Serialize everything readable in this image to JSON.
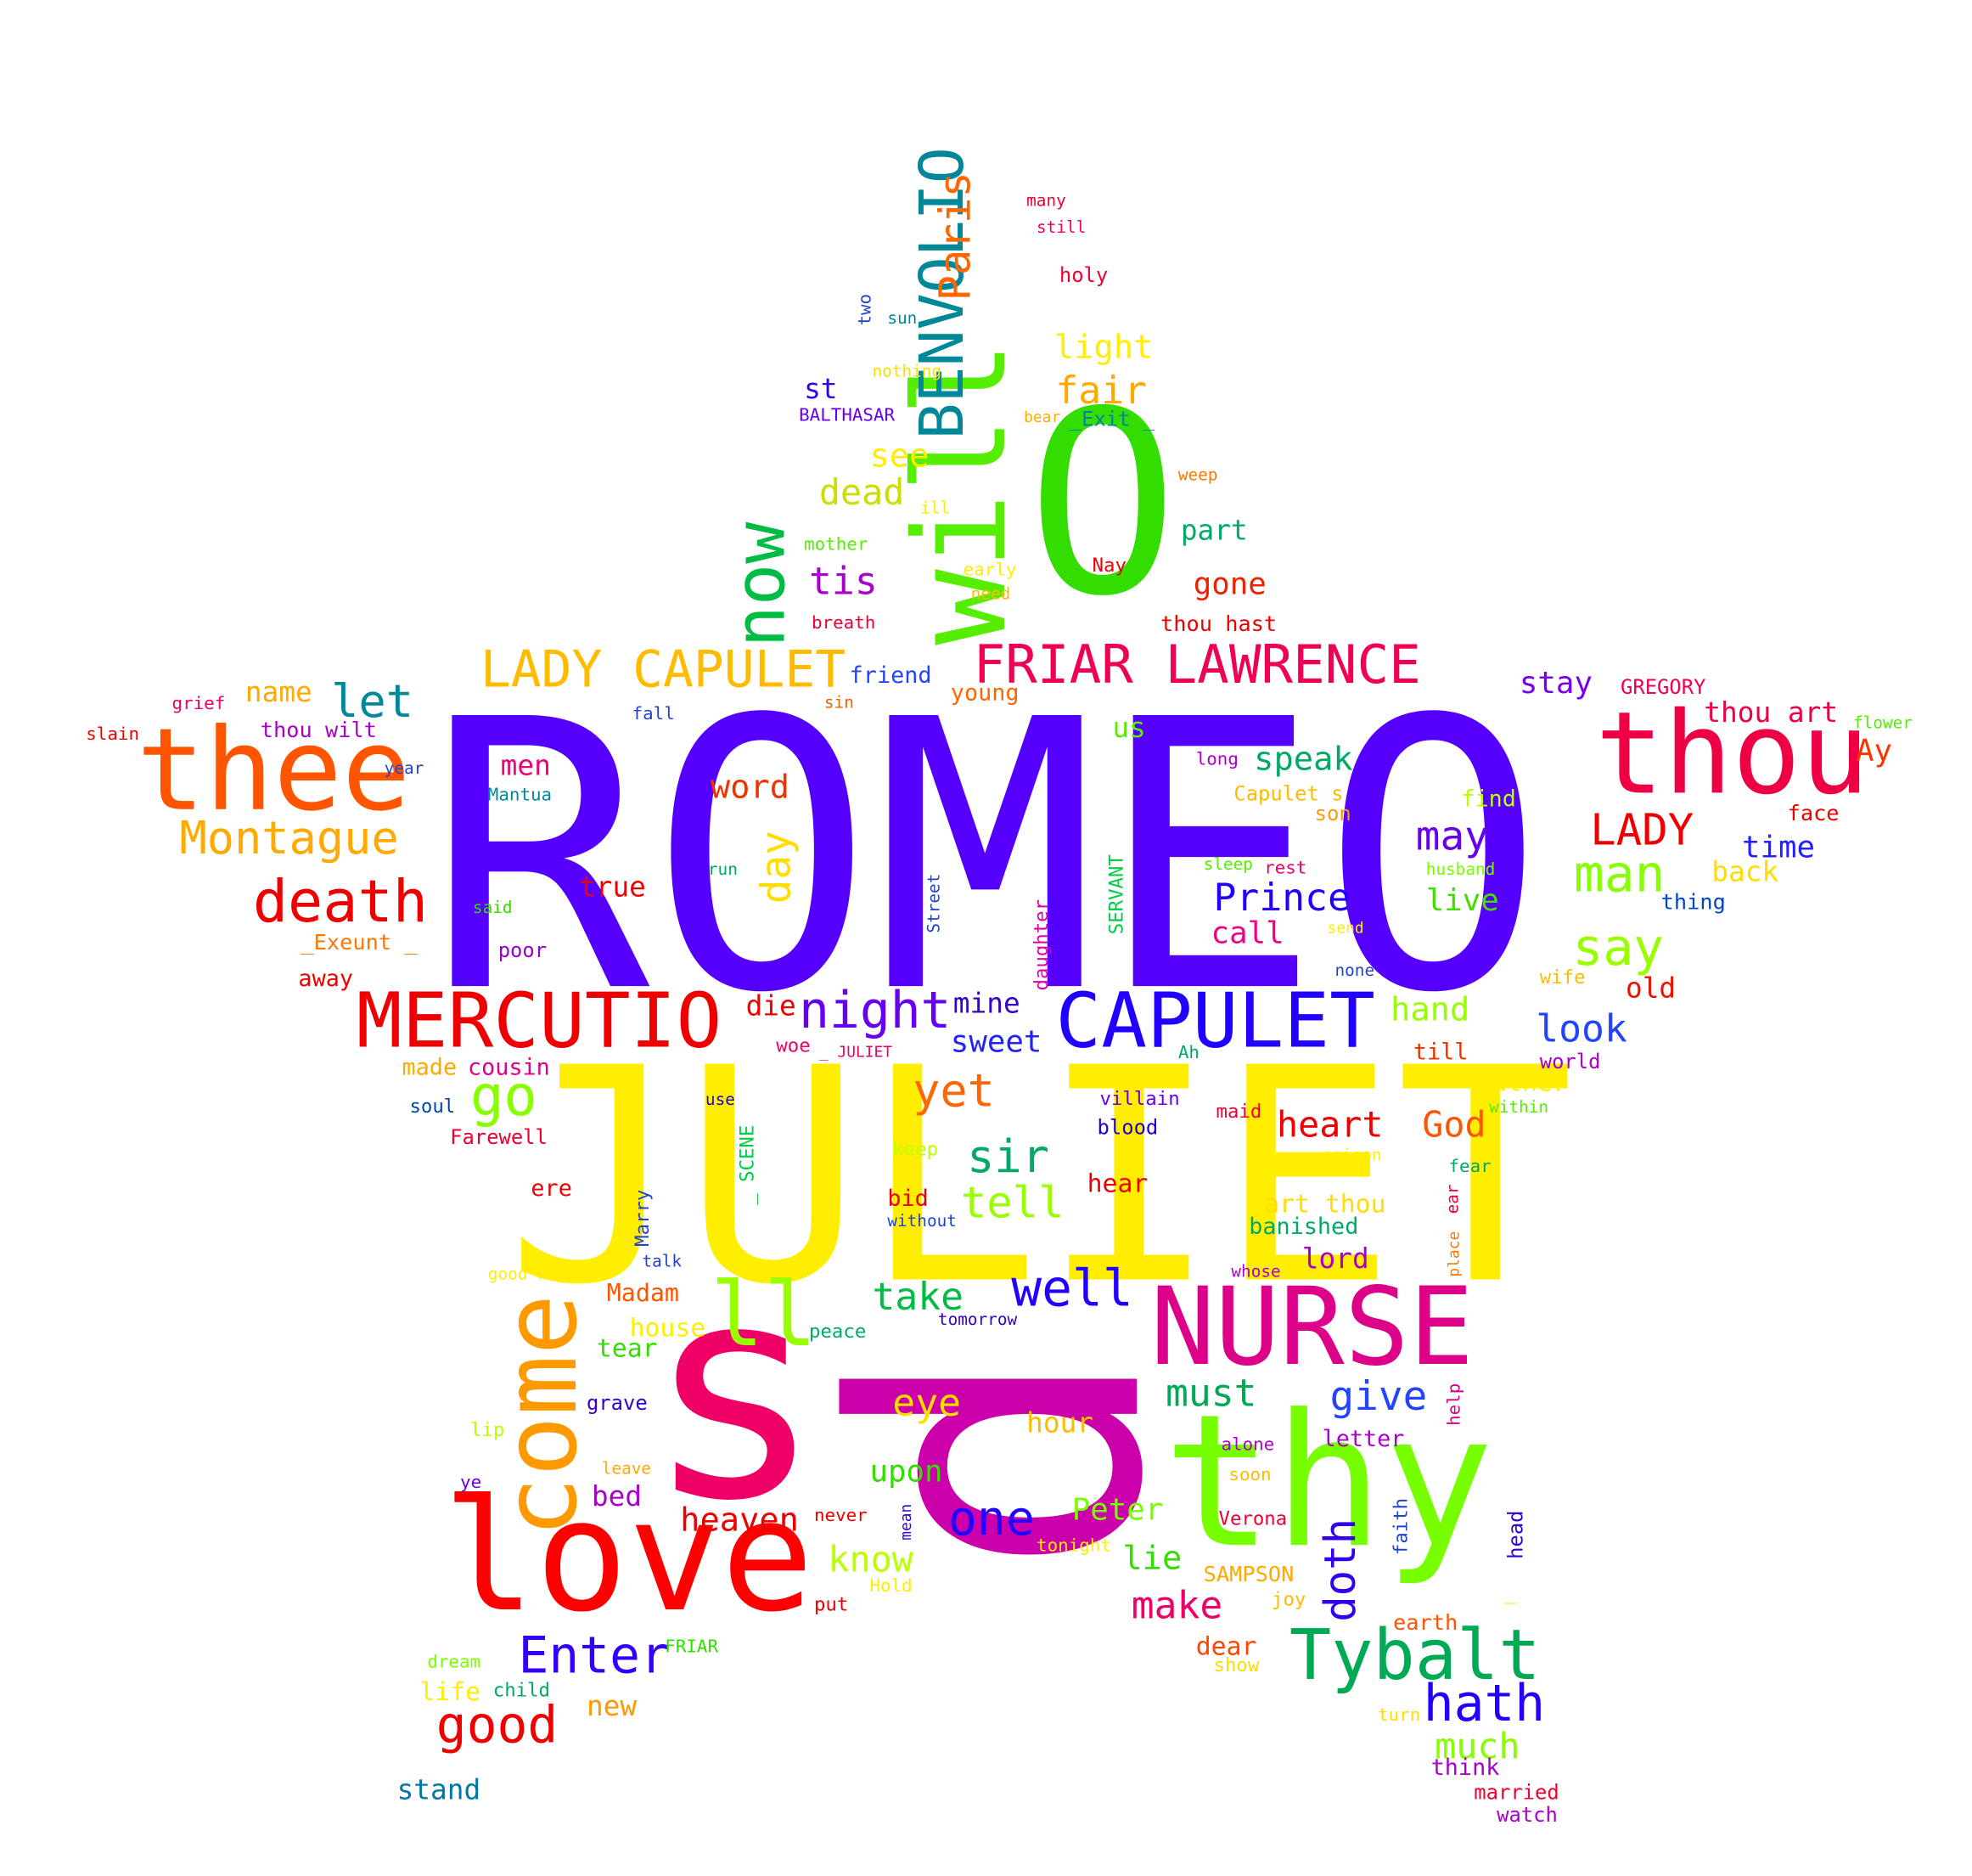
{
  "word_cloud": {
    "shape": "star",
    "background": "#ffffff",
    "palette": [
      "#5500ff",
      "#ffee00",
      "#dd00aa",
      "#66ff00",
      "#ff0000",
      "#ff6600",
      "#0099aa",
      "#00cc44",
      "#2200ff",
      "#ffaa00"
    ],
    "words": [
      {
        "text": "ROMEO",
        "color": "#5500ff",
        "size": "largest"
      },
      {
        "text": "JULIET",
        "color": "#ffee00",
        "size": "largest"
      },
      {
        "text": "d",
        "color": "#cc00aa",
        "size": "largest"
      },
      {
        "text": "s",
        "color": "#ee0066",
        "size": "largest"
      },
      {
        "text": "O",
        "color": "#33dd00",
        "size": "large"
      },
      {
        "text": "will",
        "color": "#55ee00",
        "size": "large"
      },
      {
        "text": "thy",
        "color": "#77ff00",
        "size": "large"
      },
      {
        "text": "thee",
        "color": "#ff5500",
        "size": "large"
      },
      {
        "text": "thou",
        "color": "#ee0044",
        "size": "large"
      },
      {
        "text": "love",
        "color": "#ff0000",
        "size": "large"
      },
      {
        "text": "NURSE",
        "color": "#dd0088",
        "size": "large"
      },
      {
        "text": "come",
        "color": "#ff9900",
        "size": "large"
      },
      {
        "text": "CAPULET",
        "color": "#2200ff",
        "size": "medium"
      },
      {
        "text": "MERCUTIO",
        "color": "#ee0000",
        "size": "medium"
      },
      {
        "text": "BENVOLIO",
        "color": "#008899",
        "size": "medium"
      },
      {
        "text": "FRIAR LAWRENCE",
        "color": "#ee0055",
        "size": "medium"
      },
      {
        "text": "LADY CAPULET",
        "color": "#ffbb00",
        "size": "medium"
      },
      {
        "text": "Tybalt",
        "color": "#00aa55",
        "size": "medium"
      },
      {
        "text": "ll",
        "color": "#99ff00",
        "size": "medium"
      },
      {
        "text": "now",
        "color": "#00bb44",
        "size": "medium"
      },
      {
        "text": "night",
        "color": "#6600ee",
        "size": "medium"
      },
      {
        "text": "death",
        "color": "#ee0000",
        "size": "medium"
      },
      {
        "text": "Montague",
        "color": "#ffaa00",
        "size": "medium"
      },
      {
        "text": "good",
        "color": "#ee0000",
        "size": "medium"
      },
      {
        "text": "hath",
        "color": "#2200ff",
        "size": "medium"
      },
      {
        "text": "Enter",
        "color": "#3300ff",
        "size": "medium"
      },
      {
        "text": "well",
        "color": "#2200ff",
        "size": "medium"
      },
      {
        "text": "go",
        "color": "#88ff00",
        "size": "medium"
      },
      {
        "text": "man",
        "color": "#88ff00",
        "size": "medium"
      },
      {
        "text": "say",
        "color": "#99ff00",
        "size": "medium"
      },
      {
        "text": "LADY",
        "color": "#ee0000",
        "size": "medium"
      },
      {
        "text": "one",
        "color": "#2200ff",
        "size": "medium"
      },
      {
        "text": "Paris",
        "color": "#ff6600",
        "size": "medium"
      },
      {
        "text": "doth",
        "color": "#3300ee",
        "size": "medium"
      },
      {
        "text": "let",
        "color": "#008899",
        "size": "medium"
      },
      {
        "text": "sir",
        "color": "#00aa66",
        "size": "medium"
      },
      {
        "text": "yet",
        "color": "#ff6600",
        "size": "medium"
      },
      {
        "text": "give",
        "color": "#2244ff",
        "size": "small"
      },
      {
        "text": "tell",
        "color": "#99ff00",
        "size": "small"
      },
      {
        "text": "may",
        "color": "#6600ee",
        "size": "small"
      },
      {
        "text": "day",
        "color": "#ffdd00",
        "size": "small"
      },
      {
        "text": "Prince",
        "color": "#2200ff",
        "size": "small"
      },
      {
        "text": "tis",
        "color": "#aa00cc",
        "size": "small"
      },
      {
        "text": "fair",
        "color": "#ffaa00",
        "size": "small"
      },
      {
        "text": "look",
        "color": "#2244ff",
        "size": "small"
      },
      {
        "text": "must",
        "color": "#00aa55",
        "size": "small"
      },
      {
        "text": "heart",
        "color": "#ee0000",
        "size": "small"
      },
      {
        "text": "God",
        "color": "#ff5500",
        "size": "small"
      },
      {
        "text": "eye",
        "color": "#ffdd00",
        "size": "small"
      },
      {
        "text": "dead",
        "color": "#ccdd00",
        "size": "small"
      },
      {
        "text": "make",
        "color": "#ee0066",
        "size": "small"
      },
      {
        "text": "take",
        "color": "#00bb44",
        "size": "small"
      },
      {
        "text": "know",
        "color": "#bbff00",
        "size": "small"
      },
      {
        "text": "much",
        "color": "#88ff00",
        "size": "small"
      },
      {
        "text": "heaven",
        "color": "#ee0000",
        "size": "small"
      },
      {
        "text": "speak",
        "color": "#00aa66",
        "size": "small"
      },
      {
        "text": "word",
        "color": "#ee3300",
        "size": "small"
      },
      {
        "text": "hand",
        "color": "#99ff00",
        "size": "small"
      },
      {
        "text": "see",
        "color": "#ffee00",
        "size": "small"
      },
      {
        "text": "light",
        "color": "#ffee00",
        "size": "small"
      },
      {
        "text": "sweet",
        "color": "#2222ff",
        "size": "small"
      },
      {
        "text": "gone",
        "color": "#ee2200",
        "size": "small"
      },
      {
        "text": "live",
        "color": "#44dd00",
        "size": "small"
      },
      {
        "text": "lie",
        "color": "#33dd00",
        "size": "small"
      },
      {
        "text": "upon",
        "color": "#33dd00",
        "size": "small"
      },
      {
        "text": "Peter",
        "color": "#77ff00",
        "size": "small"
      },
      {
        "text": "call",
        "color": "#ee0088",
        "size": "small"
      },
      {
        "text": "time",
        "color": "#2222ff",
        "size": "small"
      },
      {
        "text": "stay",
        "color": "#7700ee",
        "size": "small"
      },
      {
        "text": "Ay",
        "color": "#ff3300",
        "size": "small"
      },
      {
        "text": "back",
        "color": "#ffdd00",
        "size": "small"
      },
      {
        "text": "old",
        "color": "#ee1100",
        "size": "small"
      },
      {
        "text": "lord",
        "color": "#aa00cc",
        "size": "small"
      },
      {
        "text": "men",
        "color": "#ee0077",
        "size": "small"
      },
      {
        "text": "true",
        "color": "#ee0000",
        "size": "small"
      },
      {
        "text": "name",
        "color": "#ffaa00",
        "size": "small"
      },
      {
        "text": "mine",
        "color": "#3300cc",
        "size": "small"
      },
      {
        "text": "st",
        "color": "#3300ee",
        "size": "small"
      },
      {
        "text": "us",
        "color": "#55ee00",
        "size": "small"
      },
      {
        "text": "part",
        "color": "#00aa66",
        "size": "small"
      },
      {
        "text": "hour",
        "color": "#ffbb00",
        "size": "small"
      },
      {
        "text": "dear",
        "color": "#ff4400",
        "size": "small"
      },
      {
        "text": "new",
        "color": "#ff9900",
        "size": "small"
      },
      {
        "text": "stand",
        "color": "#0077aa",
        "size": "small"
      },
      {
        "text": "bed",
        "color": "#aa00cc",
        "size": "small"
      },
      {
        "text": "die",
        "color": "#ee0000",
        "size": "small"
      },
      {
        "text": "house",
        "color": "#ffee00",
        "size": "small"
      },
      {
        "text": "tear",
        "color": "#33dd00",
        "size": "small"
      },
      {
        "text": "Madam",
        "color": "#ff5500",
        "size": "small"
      },
      {
        "text": "hear",
        "color": "#ee0000",
        "size": "small"
      },
      {
        "text": "banished",
        "color": "#00aa66",
        "size": "small"
      },
      {
        "text": "art thou",
        "color": "#ffdd00",
        "size": "small"
      },
      {
        "text": "father",
        "color": "#ffee00",
        "size": "small"
      },
      {
        "text": "letter",
        "color": "#aa00cc",
        "size": "small"
      },
      {
        "text": "think",
        "color": "#aa00cc",
        "size": "small"
      },
      {
        "text": "life",
        "color": "#ffee00",
        "size": "small"
      },
      {
        "text": "SAMPSON",
        "color": "#ffaa00",
        "size": "tiny"
      },
      {
        "text": "GREGORY",
        "color": "#ee0055",
        "size": "tiny"
      },
      {
        "text": "thou art",
        "color": "#ee0044",
        "size": "small"
      },
      {
        "text": "thou hast",
        "color": "#ee0000",
        "size": "tiny"
      },
      {
        "text": "thou wilt",
        "color": "#aa00cc",
        "size": "tiny"
      },
      {
        "text": "friend",
        "color": "#2244ff",
        "size": "tiny"
      },
      {
        "text": "young",
        "color": "#ff6600",
        "size": "tiny"
      },
      {
        "text": "grave",
        "color": "#3300cc",
        "size": "tiny"
      },
      {
        "text": "poor",
        "color": "#9900cc",
        "size": "tiny"
      },
      {
        "text": "away",
        "color": "#ee0000",
        "size": "tiny"
      },
      {
        "text": "cousin",
        "color": "#dd0088",
        "size": "tiny"
      },
      {
        "text": "made",
        "color": "#ffaa00",
        "size": "tiny"
      },
      {
        "text": "soul",
        "color": "#0044aa",
        "size": "tiny"
      },
      {
        "text": "Farewell",
        "color": "#ee0033",
        "size": "tiny"
      },
      {
        "text": "ere",
        "color": "#ee0000",
        "size": "tiny"
      },
      {
        "text": "bid",
        "color": "#ee0000",
        "size": "tiny"
      },
      {
        "text": "world",
        "color": "#aa00cc",
        "size": "tiny"
      },
      {
        "text": "till",
        "color": "#ee3300",
        "size": "tiny"
      },
      {
        "text": "wife",
        "color": "#ffbb00",
        "size": "tiny"
      },
      {
        "text": "face",
        "color": "#ee0000",
        "size": "tiny"
      },
      {
        "text": "thing",
        "color": "#0044cc",
        "size": "tiny"
      },
      {
        "text": "find",
        "color": "#bbff00",
        "size": "tiny"
      },
      {
        "text": "son",
        "color": "#ff9900",
        "size": "tiny"
      },
      {
        "text": "Capulet s",
        "color": "#ffbb00",
        "size": "tiny"
      },
      {
        "text": "long",
        "color": "#aa00cc",
        "size": "tiny"
      },
      {
        "text": "rest",
        "color": "#ee0066",
        "size": "tiny"
      },
      {
        "text": "sleep",
        "color": "#55ee00",
        "size": "tiny"
      },
      {
        "text": "husband",
        "color": "#77ff00",
        "size": "tiny"
      },
      {
        "text": "send",
        "color": "#ffee00",
        "size": "tiny"
      },
      {
        "text": "none",
        "color": "#2244cc",
        "size": "tiny"
      },
      {
        "text": "flower",
        "color": "#55ee00",
        "size": "tiny"
      },
      {
        "text": "slain",
        "color": "#ee0000",
        "size": "tiny"
      },
      {
        "text": "grief",
        "color": "#ee0066",
        "size": "tiny"
      },
      {
        "text": "fall",
        "color": "#2244cc",
        "size": "tiny"
      },
      {
        "text": "sin",
        "color": "#ee6600",
        "size": "tiny"
      },
      {
        "text": "year",
        "color": "#2244cc",
        "size": "tiny"
      },
      {
        "text": "Mantua",
        "color": "#008899",
        "size": "tiny"
      },
      {
        "text": "said",
        "color": "#33dd00",
        "size": "tiny"
      },
      {
        "text": "run",
        "color": "#00aa66",
        "size": "tiny"
      },
      {
        "text": "_Exeunt _",
        "color": "#ff7700",
        "size": "tiny"
      },
      {
        "text": "_Exit _",
        "color": "#008899",
        "size": "tiny"
      },
      {
        "text": "mother",
        "color": "#55ee00",
        "size": "tiny"
      },
      {
        "text": "early",
        "color": "#ffee00",
        "size": "tiny"
      },
      {
        "text": "need",
        "color": "#ffbb00",
        "size": "tiny"
      },
      {
        "text": "breath",
        "color": "#ee0033",
        "size": "tiny"
      },
      {
        "text": "ill",
        "color": "#ffee00",
        "size": "tiny"
      },
      {
        "text": "weep",
        "color": "#ff7700",
        "size": "tiny"
      },
      {
        "text": "Nay",
        "color": "#ee0000",
        "size": "tiny"
      },
      {
        "text": "holy",
        "color": "#ee0033",
        "size": "tiny"
      },
      {
        "text": "many",
        "color": "#ee0033",
        "size": "tiny"
      },
      {
        "text": "still",
        "color": "#ee0066",
        "size": "tiny"
      },
      {
        "text": "two",
        "color": "#2244cc",
        "size": "tiny"
      },
      {
        "text": "sun",
        "color": "#008899",
        "size": "tiny"
      },
      {
        "text": "nothing",
        "color": "#ffdd00",
        "size": "tiny"
      },
      {
        "text": "BALTHASAR",
        "color": "#6600ee",
        "size": "tiny"
      },
      {
        "text": "bear",
        "color": "#ffaa00",
        "size": "tiny"
      },
      {
        "text": "woe",
        "color": "#ee0066",
        "size": "tiny"
      },
      {
        "text": "_ JULIET",
        "color": "#ee0066",
        "size": "tiny"
      },
      {
        "text": "Ah",
        "color": "#00aa66",
        "size": "tiny"
      },
      {
        "text": "villain",
        "color": "#6600ee",
        "size": "tiny"
      },
      {
        "text": "blood",
        "color": "#2200cc",
        "size": "tiny"
      },
      {
        "text": "maid",
        "color": "#ee0033",
        "size": "tiny"
      },
      {
        "text": "poison",
        "color": "#ffee00",
        "size": "tiny"
      },
      {
        "text": "within",
        "color": "#55ee00",
        "size": "tiny"
      },
      {
        "text": "fear",
        "color": "#00aa66",
        "size": "tiny"
      },
      {
        "text": "use",
        "color": "#2200cc",
        "size": "tiny"
      },
      {
        "text": "keep",
        "color": "#bbff00",
        "size": "tiny"
      },
      {
        "text": "without",
        "color": "#2244cc",
        "size": "tiny"
      },
      {
        "text": "talk",
        "color": "#2244cc",
        "size": "tiny"
      },
      {
        "text": "good night",
        "color": "#ffee00",
        "size": "tiny"
      },
      {
        "text": "peace",
        "color": "#00aa66",
        "size": "tiny"
      },
      {
        "text": "tomorrow",
        "color": "#3300cc",
        "size": "tiny"
      },
      {
        "text": "whose",
        "color": "#aa00cc",
        "size": "tiny"
      },
      {
        "text": "lip",
        "color": "#bbff00",
        "size": "tiny"
      },
      {
        "text": "leave",
        "color": "#ffaa00",
        "size": "tiny"
      },
      {
        "text": "ye",
        "color": "#6600ee",
        "size": "tiny"
      },
      {
        "text": "never",
        "color": "#ee0000",
        "size": "tiny"
      },
      {
        "text": "alone",
        "color": "#aa00cc",
        "size": "tiny"
      },
      {
        "text": "soon",
        "color": "#ffbb00",
        "size": "tiny"
      },
      {
        "text": "Verona",
        "color": "#ee0033",
        "size": "tiny"
      },
      {
        "text": "tonight",
        "color": "#ffee00",
        "size": "tiny"
      },
      {
        "text": "Hold",
        "color": "#ffee00",
        "size": "tiny"
      },
      {
        "text": "put",
        "color": "#ee0000",
        "size": "tiny"
      },
      {
        "text": "joy",
        "color": "#ffbb00",
        "size": "tiny"
      },
      {
        "text": "earth",
        "color": "#ff5500",
        "size": "tiny"
      },
      {
        "text": "show",
        "color": "#ffdd00",
        "size": "tiny"
      },
      {
        "text": "turn",
        "color": "#ffdd00",
        "size": "tiny"
      },
      {
        "text": "married",
        "color": "#ee0033",
        "size": "tiny"
      },
      {
        "text": "watch",
        "color": "#aa00cc",
        "size": "tiny"
      },
      {
        "text": "child",
        "color": "#00aa66",
        "size": "tiny"
      },
      {
        "text": "dream",
        "color": "#77ff00",
        "size": "tiny"
      },
      {
        "text": "FRIAR",
        "color": "#33dd00",
        "size": "tiny"
      },
      {
        "text": "SERVANT",
        "color": "#00cc44",
        "size": "tiny"
      },
      {
        "text": "daughter",
        "color": "#dd00aa",
        "size": "tiny"
      },
      {
        "text": "Street",
        "color": "#2244cc",
        "size": "tiny"
      },
      {
        "text": "_ SCENE",
        "color": "#00cc44",
        "size": "tiny"
      },
      {
        "text": "Marry",
        "color": "#2244cc",
        "size": "tiny"
      },
      {
        "text": "ear",
        "color": "#ee0033",
        "size": "tiny"
      },
      {
        "text": "place",
        "color": "#ff7700",
        "size": "tiny"
      },
      {
        "text": "help",
        "color": "#dd0088",
        "size": "tiny"
      },
      {
        "text": "faith",
        "color": "#2244cc",
        "size": "tiny"
      },
      {
        "text": "head",
        "color": "#3300cc",
        "size": "tiny"
      },
      {
        "text": "mean",
        "color": "#3300cc",
        "size": "tiny"
      },
      {
        "text": "_",
        "color": "#ffdd00",
        "size": "tiny"
      }
    ]
  }
}
